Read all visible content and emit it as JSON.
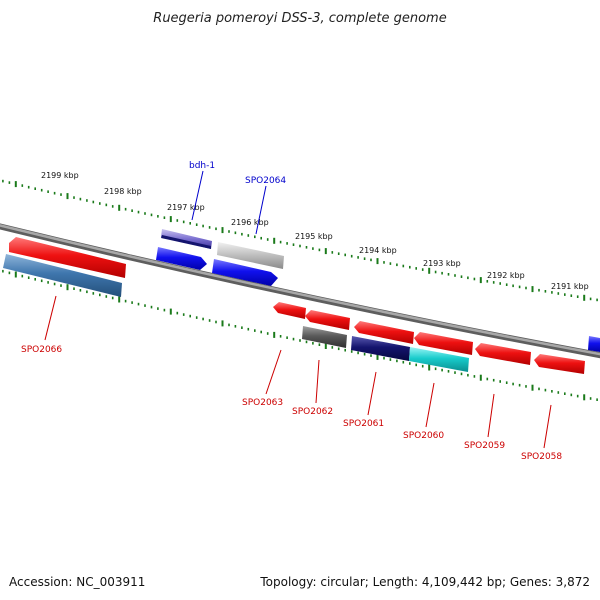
{
  "title": "Ruegeria pomeroyi DSS-3, complete genome",
  "footer": {
    "accession": "Accession: NC_003911",
    "summary": "Topology: circular; Length: 4,109,442 bp; Genes: 3,872"
  },
  "kbp_labels": [
    "2199 kbp",
    "2198 kbp",
    "2197 kbp",
    "2196 kbp",
    "2195 kbp",
    "2194 kbp",
    "2193 kbp",
    "2192 kbp",
    "2191 kbp"
  ],
  "gene_labels": {
    "bdh1": "bdh-1",
    "spo2064": "SPO2064",
    "spo2066": "SPO2066",
    "spo2063": "SPO2063",
    "spo2062": "SPO2062",
    "spo2061": "SPO2061",
    "spo2060": "SPO2060",
    "spo2059": "SPO2059",
    "spo2058": "SPO2058"
  },
  "colors": {
    "backbone": "#808080",
    "tick": "#1a7a1a",
    "forward_label": "#0000cc",
    "reverse_label": "#cc0000",
    "red_gene": "#ee1111",
    "blue_gene": "#1111ee",
    "steel_gene": "#3f76ad",
    "navy_gene": "#14146e",
    "cyan_gene": "#19cccc",
    "gray_gene": "#5a5a5a",
    "silver_gene": "#bdbdbd"
  }
}
